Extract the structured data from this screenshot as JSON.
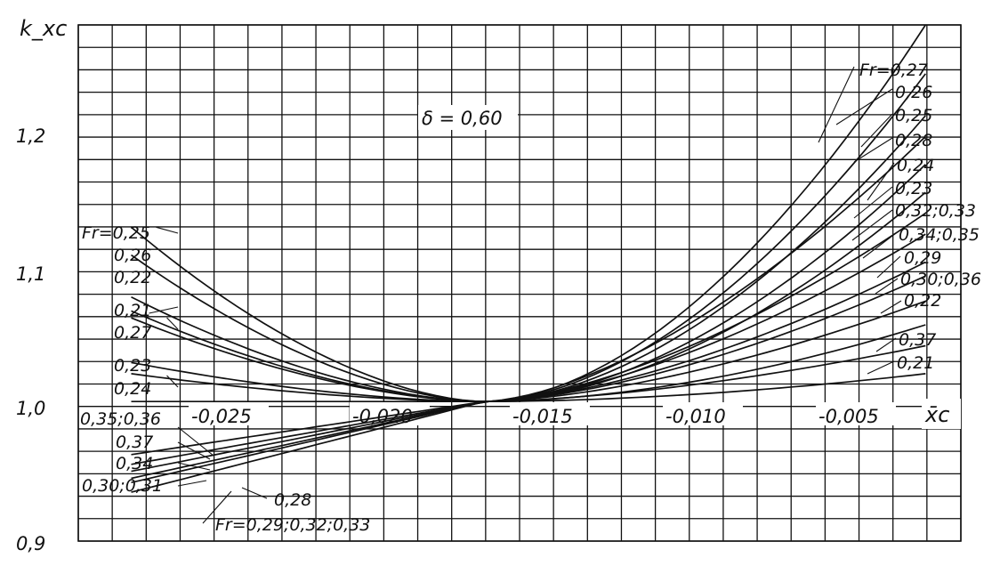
{
  "chart_data": {
    "type": "line",
    "y_axis_title": "k_xc",
    "x_axis_title": "x̄c",
    "y_ticks": [
      "1,2",
      "1,1",
      "1,0",
      "0,9"
    ],
    "x_ticks": [
      "-0,025",
      "-0,020",
      "-0,015",
      "-0,010",
      "-0,005"
    ],
    "annotation": "δ = 0,60",
    "xlim": [
      -0.028,
      -0.003
    ],
    "ylim": [
      0.9,
      1.27
    ],
    "grid": true,
    "x_range_curves": [
      -0.0265,
      -0.004
    ],
    "pivot": {
      "x": -0.0165,
      "y": 1.0
    },
    "left_labels": [
      "Fr=0,25",
      "0,26",
      "0,22",
      "0,21",
      "0,27",
      "0,23",
      "0,24",
      "0,35;0,36",
      "0,37",
      "0,34",
      "0,30;0,31",
      "0,28",
      "Fr=0,29;0,32;0,33"
    ],
    "right_labels": [
      "Fr=0,27",
      "0,26",
      "0,25",
      "0,28",
      "0,24",
      "0,23",
      "0,32;0,33",
      "0,34;0,35",
      "0,29",
      "0,30;0,36",
      "0,22",
      "0,37",
      "0,21"
    ],
    "series": [
      {
        "name": "0,25",
        "left": 1.125,
        "right": 1.235
      },
      {
        "name": "0,26",
        "left": 1.105,
        "right": 1.205
      },
      {
        "name": "0,22",
        "left": 1.075,
        "right": 1.055
      },
      {
        "name": "0,21",
        "left": 1.065,
        "right": 1.02
      },
      {
        "name": "0,27",
        "left": 1.06,
        "right": 1.27
      },
      {
        "name": "0,23",
        "left": 1.028,
        "right": 1.15
      },
      {
        "name": "0,24",
        "left": 1.02,
        "right": 1.17
      },
      {
        "name": "0,28",
        "left": 1.0,
        "right": 1.19,
        "shape": "exp"
      },
      {
        "name": "0,29",
        "left": 0.935,
        "right": 1.1,
        "shape": "exp"
      },
      {
        "name": "0,30;0,31",
        "left": 0.942,
        "right": 1.072,
        "shape": "exp"
      },
      {
        "name": "0,32;0,33",
        "left": 0.945,
        "right": 1.135,
        "shape": "exp"
      },
      {
        "name": "0,34",
        "left": 0.95,
        "right": 1.12,
        "shape": "exp"
      },
      {
        "name": "0,35;0,36",
        "left": 0.962,
        "right": 1.09,
        "shape": "exp"
      },
      {
        "name": "0,37",
        "left": 0.955,
        "right": 1.04,
        "shape": "exp"
      }
    ]
  }
}
